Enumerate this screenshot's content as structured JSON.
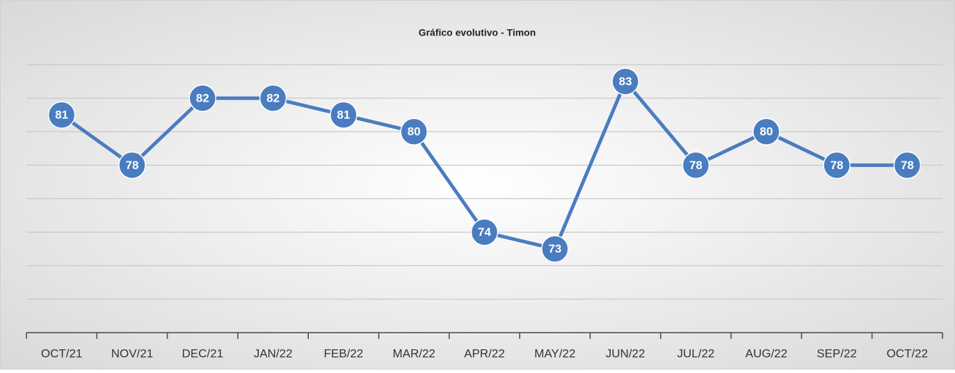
{
  "chart_data": {
    "type": "line",
    "title": "Gráfico evolutivo - Timon",
    "categories": [
      "OCT/21",
      "NOV/21",
      "DEC/21",
      "JAN/22",
      "FEB/22",
      "MAR/22",
      "APR/22",
      "MAY/22",
      "JUN/22",
      "JUL/22",
      "AUG/22",
      "SEP/22",
      "OCT/22"
    ],
    "series": [
      {
        "name": "Timon",
        "color": "#4a7cc0",
        "values": [
          81,
          78,
          82,
          82,
          81,
          80,
          74,
          73,
          83,
          78,
          80,
          78,
          78
        ]
      }
    ],
    "ylim": [
      68,
      84
    ],
    "yticks": [
      70,
      72,
      74,
      76,
      78,
      80,
      82,
      84
    ],
    "grid": true,
    "data_labels": true
  }
}
